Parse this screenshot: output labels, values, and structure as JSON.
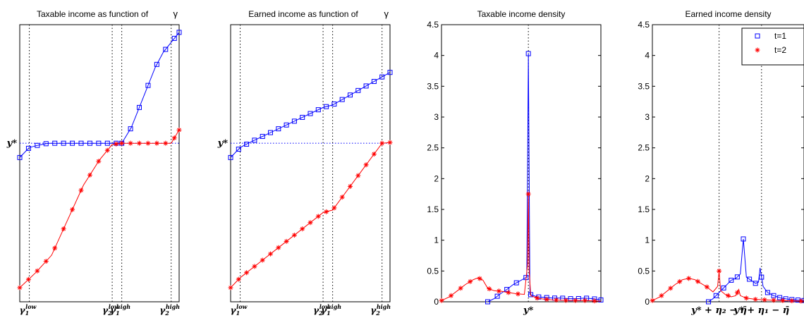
{
  "chart_data": [
    {
      "type": "line",
      "title": "Taxable income as function of",
      "title_symbol": "γ",
      "xlabel": "",
      "ylabel": "",
      "xlim": [
        0,
        1
      ],
      "ylim": [
        0,
        1
      ],
      "y_tick_labels": [
        "y*"
      ],
      "y_star": 0.577,
      "x_tick_labels": [
        {
          "base": "γ",
          "sub": "1",
          "sup": "low",
          "value": 0.06
        },
        {
          "base": "γ",
          "sub": "2",
          "sup": "low",
          "value": 0.58
        },
        {
          "base": "γ",
          "sub": "1",
          "sup": "high",
          "value": 0.64
        },
        {
          "base": "γ",
          "sub": "2",
          "sup": "high",
          "value": 0.95
        }
      ],
      "vlines": [
        0.06,
        0.58,
        0.64,
        0.95
      ],
      "series": [
        {
          "color": "#0000ff",
          "marker": "square",
          "points": [
            [
              0,
              0.52
            ],
            [
              0.06,
              0.56
            ],
            [
              0.12,
              0.57
            ],
            [
              0.18,
              0.577
            ],
            [
              0.22,
              0.577
            ],
            [
              0.64,
              0.577
            ],
            [
              0.7,
              0.64
            ],
            [
              0.75,
              0.72
            ],
            [
              0.8,
              0.8
            ],
            [
              0.85,
              0.88
            ],
            [
              0.9,
              0.94
            ],
            [
              0.95,
              0.98
            ],
            [
              1,
              1.02
            ]
          ],
          "marker_x": [
            0,
            0.055,
            0.11,
            0.165,
            0.22,
            0.275,
            0.33,
            0.385,
            0.44,
            0.495,
            0.55,
            0.605,
            0.64,
            0.695,
            0.75,
            0.805,
            0.86,
            0.915,
            0.97,
            1.0
          ]
        },
        {
          "color": "#ff0000",
          "marker": "star",
          "points": [
            [
              0,
              0.0
            ],
            [
              0.1,
              0.06
            ],
            [
              0.2,
              0.13
            ],
            [
              0.3,
              0.27
            ],
            [
              0.4,
              0.41
            ],
            [
              0.5,
              0.51
            ],
            [
              0.58,
              0.572
            ],
            [
              0.64,
              0.577
            ],
            [
              0.95,
              0.577
            ],
            [
              1,
              0.63
            ]
          ],
          "marker_x": [
            0,
            0.055,
            0.11,
            0.165,
            0.22,
            0.275,
            0.33,
            0.385,
            0.44,
            0.495,
            0.55,
            0.605,
            0.64,
            0.695,
            0.75,
            0.805,
            0.86,
            0.915,
            0.97,
            1.0
          ]
        }
      ]
    },
    {
      "type": "line",
      "title": "Earned income as function of",
      "title_symbol": "γ",
      "xlabel": "",
      "ylabel": "",
      "xlim": [
        0,
        1
      ],
      "ylim": [
        0,
        1
      ],
      "y_tick_labels": [
        "y*"
      ],
      "y_star": 0.577,
      "x_tick_labels": [
        {
          "base": "γ",
          "sub": "1",
          "sup": "low",
          "value": 0.06
        },
        {
          "base": "γ",
          "sub": "2",
          "sup": "low",
          "value": 0.58
        },
        {
          "base": "γ",
          "sub": "1",
          "sup": "high",
          "value": 0.64
        },
        {
          "base": "γ",
          "sub": "2",
          "sup": "high",
          "value": 0.95
        }
      ],
      "vlines": [
        0.06,
        0.58,
        0.64,
        0.95
      ],
      "series": [
        {
          "color": "#0000ff",
          "marker": "square",
          "points": [
            [
              0,
              0.52
            ],
            [
              0.06,
              0.56
            ],
            [
              0.12,
              0.58
            ],
            [
              0.58,
              0.72
            ],
            [
              0.64,
              0.73
            ],
            [
              1,
              0.86
            ]
          ]
        },
        {
          "color": "#ff0000",
          "marker": "star",
          "points": [
            [
              0,
              0.0
            ],
            [
              0.06,
              0.04
            ],
            [
              0.58,
              0.3
            ],
            [
              0.64,
              0.31
            ],
            [
              0.95,
              0.577
            ],
            [
              1,
              0.58
            ]
          ]
        }
      ]
    },
    {
      "type": "line",
      "title": "Taxable income density",
      "xlabel": "",
      "ylabel": "",
      "xlim": [
        0,
        1
      ],
      "ylim": [
        0,
        4.5
      ],
      "y_ticks": [
        0,
        0.5,
        1,
        1.5,
        2,
        2.5,
        3,
        3.5,
        4,
        4.5
      ],
      "x_tick_labels": [
        {
          "text": "y*",
          "value": 0.545
        }
      ],
      "vlines": [
        0.545
      ],
      "series": [
        {
          "color": "#0000ff",
          "marker": "square",
          "points": [
            [
              0.29,
              0.0
            ],
            [
              0.33,
              0.05
            ],
            [
              0.37,
              0.13
            ],
            [
              0.41,
              0.2
            ],
            [
              0.45,
              0.28
            ],
            [
              0.5,
              0.35
            ],
            [
              0.52,
              0.38
            ],
            [
              0.535,
              0.4
            ],
            [
              0.545,
              4.03
            ],
            [
              0.555,
              0.12
            ],
            [
              0.6,
              0.08
            ],
            [
              0.65,
              0.07
            ],
            [
              0.7,
              0.06
            ],
            [
              0.75,
              0.06
            ],
            [
              0.8,
              0.05
            ],
            [
              0.85,
              0.05
            ],
            [
              0.9,
              0.06
            ],
            [
              0.95,
              0.05
            ],
            [
              1,
              0.03
            ]
          ],
          "marker_x": [
            0.29,
            0.35,
            0.41,
            0.47,
            0.53,
            0.545,
            0.56,
            0.61,
            0.66,
            0.71,
            0.76,
            0.81,
            0.86,
            0.91,
            0.96,
            1.0
          ]
        },
        {
          "color": "#ff0000",
          "marker": "star",
          "points": [
            [
              0,
              0.02
            ],
            [
              0.05,
              0.08
            ],
            [
              0.1,
              0.18
            ],
            [
              0.15,
              0.28
            ],
            [
              0.2,
              0.36
            ],
            [
              0.23,
              0.39
            ],
            [
              0.26,
              0.35
            ],
            [
              0.29,
              0.22
            ],
            [
              0.33,
              0.18
            ],
            [
              0.38,
              0.17
            ],
            [
              0.42,
              0.15
            ],
            [
              0.47,
              0.13
            ],
            [
              0.52,
              0.12
            ],
            [
              0.54,
              0.6
            ],
            [
              0.545,
              1.75
            ],
            [
              0.55,
              0.5
            ],
            [
              0.56,
              0.1
            ],
            [
              0.6,
              0.06
            ],
            [
              0.65,
              0.04
            ],
            [
              0.7,
              0.03
            ],
            [
              0.8,
              0.02
            ],
            [
              0.9,
              0.02
            ],
            [
              1,
              0.01
            ]
          ],
          "marker_x": [
            0,
            0.06,
            0.12,
            0.18,
            0.24,
            0.3,
            0.36,
            0.42,
            0.48,
            0.545,
            0.6,
            0.66,
            0.72,
            0.78,
            0.84,
            0.9,
            0.96
          ]
        }
      ]
    },
    {
      "type": "line",
      "title": "Earned income density",
      "xlabel": "",
      "ylabel": "",
      "xlim": [
        0,
        1
      ],
      "ylim": [
        0,
        4.5
      ],
      "y_ticks": [
        0,
        0.5,
        1,
        1.5,
        2,
        2.5,
        3,
        3.5,
        4,
        4.5
      ],
      "x_tick_labels": [
        {
          "text": "y* + η₂ − η̄",
          "value": 0.44
        },
        {
          "text": "y* + η₁ − η̄",
          "value": 0.72
        }
      ],
      "vlines": [
        0.44,
        0.72
      ],
      "legend": {
        "placement": "top-right",
        "entries": [
          {
            "label": "t=1",
            "color": "#0000ff",
            "marker": "square"
          },
          {
            "label": "t=2",
            "color": "#ff0000",
            "marker": "star"
          }
        ]
      },
      "series": [
        {
          "name": "t=1",
          "color": "#0000ff",
          "marker": "square",
          "points": [
            [
              0.37,
              0.0
            ],
            [
              0.4,
              0.05
            ],
            [
              0.44,
              0.15
            ],
            [
              0.48,
              0.25
            ],
            [
              0.52,
              0.35
            ],
            [
              0.55,
              0.38
            ],
            [
              0.58,
              0.45
            ],
            [
              0.6,
              1.02
            ],
            [
              0.62,
              0.4
            ],
            [
              0.65,
              0.35
            ],
            [
              0.68,
              0.3
            ],
            [
              0.7,
              0.32
            ],
            [
              0.71,
              0.55
            ],
            [
              0.73,
              0.25
            ],
            [
              0.76,
              0.15
            ],
            [
              0.8,
              0.1
            ],
            [
              0.85,
              0.06
            ],
            [
              0.9,
              0.04
            ],
            [
              0.95,
              0.03
            ],
            [
              1,
              0.02
            ]
          ],
          "marker_x": [
            0.37,
            0.42,
            0.47,
            0.52,
            0.56,
            0.6,
            0.64,
            0.68,
            0.72,
            0.76,
            0.8,
            0.84,
            0.88,
            0.92,
            0.96,
            1.0
          ]
        },
        {
          "name": "t=2",
          "color": "#ff0000",
          "marker": "star",
          "points": [
            [
              0,
              0.02
            ],
            [
              0.05,
              0.08
            ],
            [
              0.1,
              0.18
            ],
            [
              0.15,
              0.28
            ],
            [
              0.2,
              0.36
            ],
            [
              0.24,
              0.38
            ],
            [
              0.28,
              0.36
            ],
            [
              0.32,
              0.3
            ],
            [
              0.36,
              0.24
            ],
            [
              0.4,
              0.16
            ],
            [
              0.43,
              0.25
            ],
            [
              0.44,
              0.5
            ],
            [
              0.45,
              0.18
            ],
            [
              0.48,
              0.12
            ],
            [
              0.52,
              0.08
            ],
            [
              0.55,
              0.1
            ],
            [
              0.57,
              0.2
            ],
            [
              0.58,
              0.1
            ],
            [
              0.62,
              0.06
            ],
            [
              0.68,
              0.04
            ],
            [
              0.75,
              0.03
            ],
            [
              0.85,
              0.02
            ],
            [
              1,
              0.01
            ]
          ],
          "marker_x": [
            0,
            0.06,
            0.12,
            0.18,
            0.24,
            0.3,
            0.36,
            0.44,
            0.5,
            0.56,
            0.62,
            0.68,
            0.74,
            0.8,
            0.86,
            0.92,
            0.98
          ]
        }
      ]
    }
  ]
}
